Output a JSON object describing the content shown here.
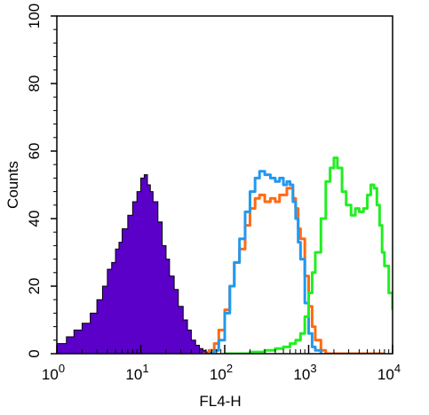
{
  "chart_data": {
    "type": "area",
    "xlabel": "FL4-H",
    "ylabel": "Counts",
    "x_scale": "log",
    "xlim": [
      1,
      10000
    ],
    "ylim": [
      0,
      100
    ],
    "x_ticks": [
      {
        "base": "10",
        "exp": "0",
        "value": 1
      },
      {
        "base": "10",
        "exp": "1",
        "value": 10
      },
      {
        "base": "10",
        "exp": "2",
        "value": 100
      },
      {
        "base": "10",
        "exp": "3",
        "value": 1000
      },
      {
        "base": "10",
        "exp": "4",
        "value": 10000
      }
    ],
    "y_ticks": [
      "0",
      "20",
      "40",
      "60",
      "80",
      "100"
    ],
    "y_tick_values": [
      0,
      20,
      40,
      60,
      80,
      100
    ],
    "grid": false,
    "series": [
      {
        "color": "#5a00c8",
        "fill": true,
        "x": [
          1,
          1.3,
          1.6,
          2,
          2.5,
          3,
          3.5,
          4,
          4.5,
          5,
          5.5,
          6,
          7,
          8,
          9,
          10,
          11,
          12,
          13,
          14,
          16,
          18,
          20,
          22,
          25,
          28,
          32,
          36,
          40,
          45,
          50,
          55,
          60,
          70
        ],
        "y": [
          3,
          5,
          7,
          9,
          12,
          16,
          20,
          25,
          27,
          31,
          33,
          37,
          41,
          45,
          48,
          52,
          53,
          50,
          48,
          45,
          39,
          32,
          28,
          23,
          19,
          14,
          10,
          7,
          4,
          2.5,
          1.5,
          1,
          0.5,
          0
        ]
      },
      {
        "color": "#ff6a13",
        "fill": false,
        "x": [
          55,
          65,
          75,
          85,
          100,
          115,
          130,
          150,
          175,
          200,
          230,
          260,
          300,
          350,
          400,
          450,
          500,
          550,
          600,
          650,
          700,
          750,
          800,
          900,
          1000,
          1100,
          1200,
          1400,
          1600,
          2000,
          3000,
          5000,
          8000
        ],
        "y": [
          0,
          1,
          3,
          7,
          13,
          20,
          27,
          31,
          38,
          43,
          46,
          47,
          45,
          46,
          45,
          47,
          47,
          49,
          49,
          46,
          43,
          37,
          34,
          23,
          14,
          8,
          4,
          1,
          0,
          0,
          0,
          0,
          0
        ]
      },
      {
        "color": "#2299ee",
        "fill": false,
        "x": [
          65,
          75,
          85,
          100,
          115,
          130,
          150,
          175,
          200,
          230,
          260,
          300,
          350,
          400,
          450,
          500,
          550,
          600,
          650,
          700,
          750,
          800,
          900,
          1000,
          1100,
          1200,
          1400
        ],
        "y": [
          0,
          1,
          4,
          12,
          20,
          27,
          34,
          42,
          48,
          52,
          54,
          53,
          52,
          51,
          52,
          50,
          51,
          50,
          45,
          40,
          33,
          28,
          15,
          6,
          2,
          1,
          0
        ]
      },
      {
        "color": "#22ee22",
        "fill": false,
        "x": [
          100,
          150,
          200,
          300,
          400,
          500,
          600,
          700,
          800,
          900,
          1000,
          1100,
          1200,
          1400,
          1600,
          1800,
          2000,
          2200,
          2500,
          2800,
          3200,
          3600,
          4000,
          4500,
          5000,
          5500,
          6000,
          6500,
          7000,
          7500,
          8000,
          9000,
          10000
        ],
        "y": [
          0,
          0,
          0.5,
          1,
          1.5,
          2,
          3,
          4,
          6,
          11,
          18,
          24,
          30,
          40,
          51,
          55,
          58,
          55,
          48,
          44,
          41,
          43,
          42,
          43,
          47,
          50,
          49,
          44,
          38,
          30,
          26,
          18,
          13
        ]
      }
    ]
  }
}
